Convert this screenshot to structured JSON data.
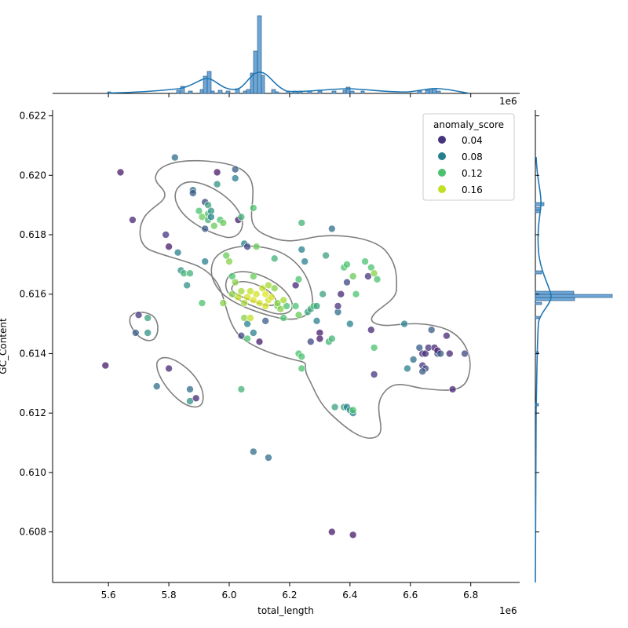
{
  "chart_data": {
    "type": "scatter",
    "xlabel": "total_length",
    "ylabel": "GC_Content",
    "x_multiplier_label": "1e6",
    "xlim": [
      5.415,
      6.962
    ],
    "ylim": [
      0.6063,
      0.6222
    ],
    "x_ticks": [
      5.6,
      5.8,
      6.0,
      6.2,
      6.4,
      6.6,
      6.8
    ],
    "y_ticks": [
      0.608,
      0.61,
      0.612,
      0.614,
      0.616,
      0.618,
      0.62,
      0.622
    ],
    "x_tick_labels": [
      "5.6",
      "5.8",
      "6.0",
      "6.2",
      "6.4",
      "6.6",
      "6.8"
    ],
    "y_tick_labels": [
      "0.608",
      "0.610",
      "0.612",
      "0.614",
      "0.616",
      "0.618",
      "0.620",
      "0.622"
    ],
    "legend": {
      "title": "anomaly_score",
      "placement": "top-right",
      "entries": [
        {
          "label": "0.04",
          "value": 0.04,
          "color": "#46337e"
        },
        {
          "label": "0.08",
          "value": 0.08,
          "color": "#277f8e"
        },
        {
          "label": "0.12",
          "value": 0.12,
          "color": "#4ac16d"
        },
        {
          "label": "0.16",
          "value": 0.16,
          "color": "#c2df23"
        }
      ]
    },
    "points": [
      [
        5.64,
        0.6201,
        0.02
      ],
      [
        5.59,
        0.6136,
        0.02
      ],
      [
        5.68,
        0.6185,
        0.03
      ],
      [
        5.7,
        0.6153,
        0.04
      ],
      [
        5.69,
        0.6147,
        0.06
      ],
      [
        5.73,
        0.6147,
        0.09
      ],
      [
        5.73,
        0.6152,
        0.1
      ],
      [
        5.76,
        0.6129,
        0.07
      ],
      [
        5.79,
        0.618,
        0.04
      ],
      [
        5.8,
        0.6135,
        0.03
      ],
      [
        5.8,
        0.6176,
        0.02
      ],
      [
        5.82,
        0.6206,
        0.07
      ],
      [
        5.83,
        0.6174,
        0.08
      ],
      [
        5.84,
        0.6168,
        0.09
      ],
      [
        5.85,
        0.6167,
        0.11
      ],
      [
        5.86,
        0.6163,
        0.09
      ],
      [
        5.87,
        0.6167,
        0.11
      ],
      [
        5.87,
        0.6128,
        0.07
      ],
      [
        5.87,
        0.6124,
        0.09
      ],
      [
        5.89,
        0.6125,
        0.03
      ],
      [
        5.88,
        0.6195,
        0.07
      ],
      [
        5.88,
        0.6194,
        0.06
      ],
      [
        5.9,
        0.6188,
        0.12
      ],
      [
        5.91,
        0.6186,
        0.13
      ],
      [
        5.92,
        0.6191,
        0.05
      ],
      [
        5.92,
        0.6182,
        0.06
      ],
      [
        5.93,
        0.619,
        0.1
      ],
      [
        5.93,
        0.6187,
        0.12
      ],
      [
        5.94,
        0.6188,
        0.09
      ],
      [
        5.93,
        0.6185,
        0.11
      ],
      [
        5.94,
        0.6186,
        0.08
      ],
      [
        5.95,
        0.6183,
        0.13
      ],
      [
        5.92,
        0.6171,
        0.08
      ],
      [
        5.91,
        0.6157,
        0.12
      ],
      [
        5.96,
        0.6201,
        0.02
      ],
      [
        5.96,
        0.6197,
        0.09
      ],
      [
        5.97,
        0.6185,
        0.12
      ],
      [
        5.98,
        0.6184,
        0.13
      ],
      [
        5.99,
        0.6173,
        0.13
      ],
      [
        6.0,
        0.6171,
        0.14
      ],
      [
        6.02,
        0.6202,
        0.06
      ],
      [
        6.02,
        0.6199,
        0.08
      ],
      [
        6.03,
        0.6185,
        0.02
      ],
      [
        6.04,
        0.6186,
        0.11
      ],
      [
        6.05,
        0.6177,
        0.08
      ],
      [
        6.06,
        0.6176,
        0.05
      ],
      [
        6.08,
        0.6189,
        0.12
      ],
      [
        6.09,
        0.6176,
        0.13
      ],
      [
        6.01,
        0.6166,
        0.12
      ],
      [
        6.01,
        0.616,
        0.14
      ],
      [
        6.02,
        0.6164,
        0.14
      ],
      [
        6.03,
        0.6159,
        0.16
      ],
      [
        6.04,
        0.6161,
        0.15
      ],
      [
        6.05,
        0.6157,
        0.15
      ],
      [
        6.05,
        0.6152,
        0.14
      ],
      [
        6.06,
        0.6159,
        0.17
      ],
      [
        6.07,
        0.6161,
        0.16
      ],
      [
        6.08,
        0.6166,
        0.13
      ],
      [
        6.08,
        0.6158,
        0.18
      ],
      [
        6.09,
        0.616,
        0.17
      ],
      [
        6.1,
        0.6157,
        0.17
      ],
      [
        6.11,
        0.6162,
        0.16
      ],
      [
        6.12,
        0.616,
        0.18
      ],
      [
        6.13,
        0.6158,
        0.17
      ],
      [
        6.13,
        0.6163,
        0.15
      ],
      [
        6.14,
        0.6159,
        0.17
      ],
      [
        6.15,
        0.6162,
        0.14
      ],
      [
        6.16,
        0.6156,
        0.13
      ],
      [
        6.17,
        0.6155,
        0.14
      ],
      [
        6.18,
        0.6152,
        0.12
      ],
      [
        6.19,
        0.6156,
        0.12
      ],
      [
        6.15,
        0.6172,
        0.11
      ],
      [
        6.04,
        0.6146,
        0.05
      ],
      [
        6.06,
        0.6145,
        0.12
      ],
      [
        6.06,
        0.615,
        0.08
      ],
      [
        6.08,
        0.6147,
        0.08
      ],
      [
        6.1,
        0.6144,
        0.02
      ],
      [
        6.12,
        0.6151,
        0.06
      ],
      [
        6.04,
        0.6128,
        0.11
      ],
      [
        6.08,
        0.6107,
        0.07
      ],
      [
        6.13,
        0.6105,
        0.07
      ],
      [
        6.22,
        0.6163,
        0.03
      ],
      [
        6.22,
        0.6156,
        0.12
      ],
      [
        6.23,
        0.6165,
        0.12
      ],
      [
        6.23,
        0.6153,
        0.13
      ],
      [
        6.24,
        0.6184,
        0.11
      ],
      [
        6.24,
        0.6175,
        0.08
      ],
      [
        6.25,
        0.6171,
        0.08
      ],
      [
        6.26,
        0.6154,
        0.1
      ],
      [
        6.27,
        0.6155,
        0.1
      ],
      [
        6.28,
        0.6156,
        0.12
      ],
      [
        6.23,
        0.614,
        0.12
      ],
      [
        6.24,
        0.6139,
        0.12
      ],
      [
        6.24,
        0.6135,
        0.12
      ],
      [
        6.27,
        0.6144,
        0.05
      ],
      [
        6.29,
        0.6151,
        0.08
      ],
      [
        6.29,
        0.6156,
        0.1
      ],
      [
        6.3,
        0.6147,
        0.02
      ],
      [
        6.3,
        0.6145,
        0.02
      ],
      [
        6.31,
        0.616,
        0.1
      ],
      [
        6.32,
        0.6173,
        0.1
      ],
      [
        6.33,
        0.6144,
        0.11
      ],
      [
        6.34,
        0.6145,
        0.11
      ],
      [
        6.34,
        0.6182,
        0.07
      ],
      [
        6.36,
        0.6154,
        0.07
      ],
      [
        6.36,
        0.6156,
        0.04
      ],
      [
        6.37,
        0.616,
        0.03
      ],
      [
        6.38,
        0.6169,
        0.12
      ],
      [
        6.39,
        0.6164,
        0.05
      ],
      [
        6.39,
        0.617,
        0.12
      ],
      [
        6.4,
        0.615,
        0.08
      ],
      [
        6.41,
        0.6166,
        0.13
      ],
      [
        6.42,
        0.616,
        0.12
      ],
      [
        6.45,
        0.6171,
        0.12
      ],
      [
        6.46,
        0.6166,
        0.04
      ],
      [
        6.47,
        0.6169,
        0.12
      ],
      [
        6.48,
        0.6167,
        0.14
      ],
      [
        6.49,
        0.6165,
        0.12
      ],
      [
        6.47,
        0.6148,
        0.03
      ],
      [
        6.48,
        0.6142,
        0.12
      ],
      [
        6.48,
        0.6133,
        0.04
      ],
      [
        6.38,
        0.6122,
        0.1
      ],
      [
        6.39,
        0.6122,
        0.08
      ],
      [
        6.4,
        0.6121,
        0.09
      ],
      [
        6.41,
        0.612,
        0.08
      ],
      [
        6.41,
        0.6121,
        0.12
      ],
      [
        6.35,
        0.6122,
        0.1
      ],
      [
        6.34,
        0.608,
        0.02
      ],
      [
        6.41,
        0.6079,
        0.02
      ],
      [
        6.58,
        0.615,
        0.08
      ],
      [
        6.59,
        0.6135,
        0.08
      ],
      [
        6.61,
        0.6138,
        0.07
      ],
      [
        6.63,
        0.6142,
        0.06
      ],
      [
        6.64,
        0.614,
        0.03
      ],
      [
        6.65,
        0.614,
        0.04
      ],
      [
        6.66,
        0.6142,
        0.04
      ],
      [
        6.64,
        0.6136,
        0.04
      ],
      [
        6.65,
        0.6135,
        0.05
      ],
      [
        6.67,
        0.6148,
        0.06
      ],
      [
        6.68,
        0.6142,
        0.03
      ],
      [
        6.69,
        0.614,
        0.05
      ],
      [
        6.69,
        0.6141,
        0.02
      ],
      [
        6.7,
        0.614,
        0.06
      ],
      [
        6.72,
        0.6146,
        0.03
      ],
      [
        6.73,
        0.614,
        0.03
      ],
      [
        6.74,
        0.6128,
        0.03
      ],
      [
        6.78,
        0.614,
        0.05
      ],
      [
        6.64,
        0.6134,
        0.06
      ],
      [
        5.98,
        0.6157,
        0.14
      ],
      [
        6.16,
        0.6157,
        0.14
      ],
      [
        6.12,
        0.6156,
        0.17
      ],
      [
        6.07,
        0.6152,
        0.16
      ],
      [
        6.18,
        0.6158,
        0.15
      ]
    ]
  }
}
